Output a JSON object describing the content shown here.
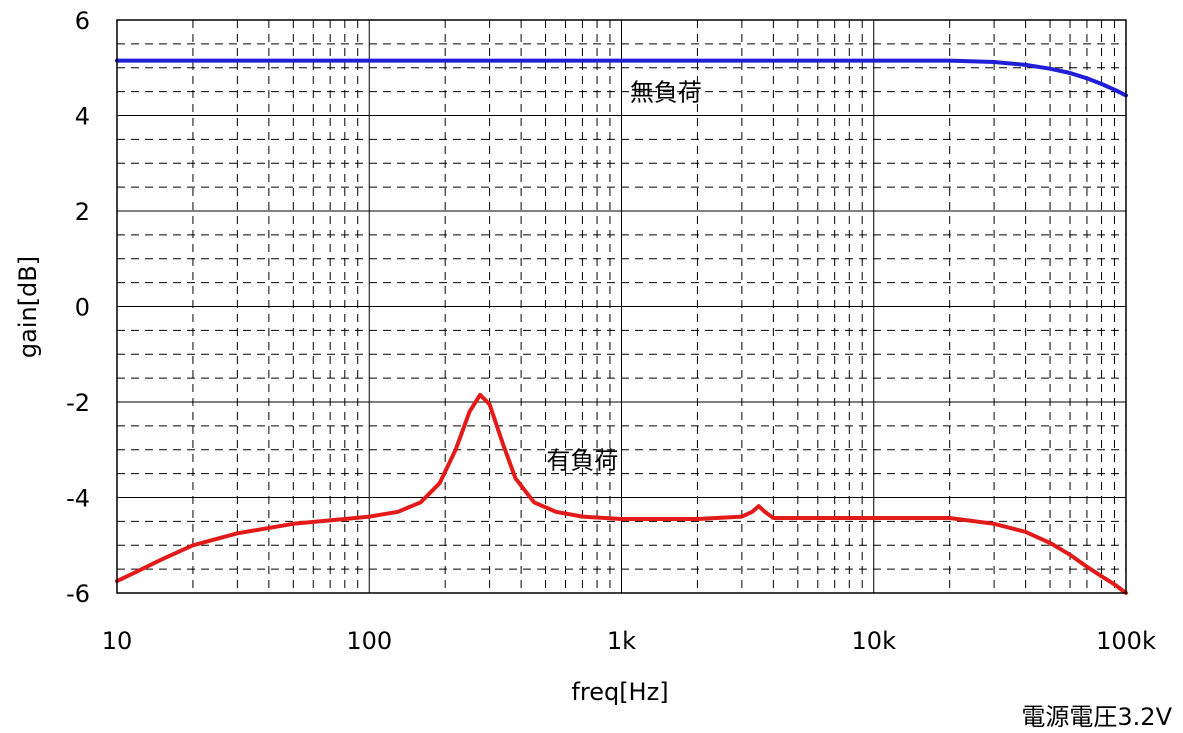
{
  "chart_data": {
    "type": "line",
    "title": "",
    "xlabel": "freq[Hz]",
    "ylabel": "gain[dB]",
    "xscale": "log",
    "xlim": [
      10,
      100000
    ],
    "ylim": [
      -6,
      6
    ],
    "grid": "major solid, minor dashed",
    "xticks": [
      {
        "value": 10,
        "label": "10"
      },
      {
        "value": 100,
        "label": "100"
      },
      {
        "value": 1000,
        "label": "1k"
      },
      {
        "value": 10000,
        "label": "10k"
      },
      {
        "value": 100000,
        "label": "100k"
      }
    ],
    "yticks": [
      {
        "value": 6,
        "label": "6"
      },
      {
        "value": 4,
        "label": "4"
      },
      {
        "value": 2,
        "label": "2"
      },
      {
        "value": 0,
        "label": "0"
      },
      {
        "value": -2,
        "label": "-2"
      },
      {
        "value": -4,
        "label": "-4"
      },
      {
        "value": -6,
        "label": "-6"
      }
    ],
    "series": [
      {
        "name": "無負荷",
        "color": "#1f1fd6",
        "x": [
          10,
          100,
          1000,
          10000,
          20000,
          30000,
          40000,
          50000,
          60000,
          70000,
          80000,
          90000,
          100000
        ],
        "y": [
          5.15,
          5.15,
          5.15,
          5.15,
          5.15,
          5.12,
          5.06,
          4.98,
          4.89,
          4.78,
          4.66,
          4.54,
          4.42
        ]
      },
      {
        "name": "有負荷",
        "color": "#e31a1a",
        "x": [
          10,
          12,
          15,
          20,
          30,
          50,
          80,
          100,
          130,
          160,
          190,
          220,
          250,
          275,
          300,
          340,
          380,
          450,
          550,
          700,
          1000,
          2000,
          3000,
          3300,
          3500,
          3700,
          4000,
          5000,
          8000,
          20000,
          30000,
          40000,
          50000,
          60000,
          70000,
          80000,
          90000,
          100000
        ],
        "y": [
          -5.75,
          -5.55,
          -5.3,
          -5.0,
          -4.75,
          -4.55,
          -4.45,
          -4.4,
          -4.3,
          -4.1,
          -3.7,
          -3.0,
          -2.2,
          -1.85,
          -2.05,
          -2.9,
          -3.6,
          -4.1,
          -4.3,
          -4.4,
          -4.45,
          -4.45,
          -4.4,
          -4.3,
          -4.18,
          -4.3,
          -4.43,
          -4.43,
          -4.43,
          -4.43,
          -4.55,
          -4.72,
          -4.95,
          -5.2,
          -5.45,
          -5.65,
          -5.82,
          -6.0
        ]
      }
    ],
    "annotations": [
      {
        "text": "無負荷",
        "x": 1500,
        "y": 4.5
      },
      {
        "text": "有負荷",
        "x": 700,
        "y": -3.2
      }
    ],
    "footnote": "電源電圧3.2V"
  }
}
